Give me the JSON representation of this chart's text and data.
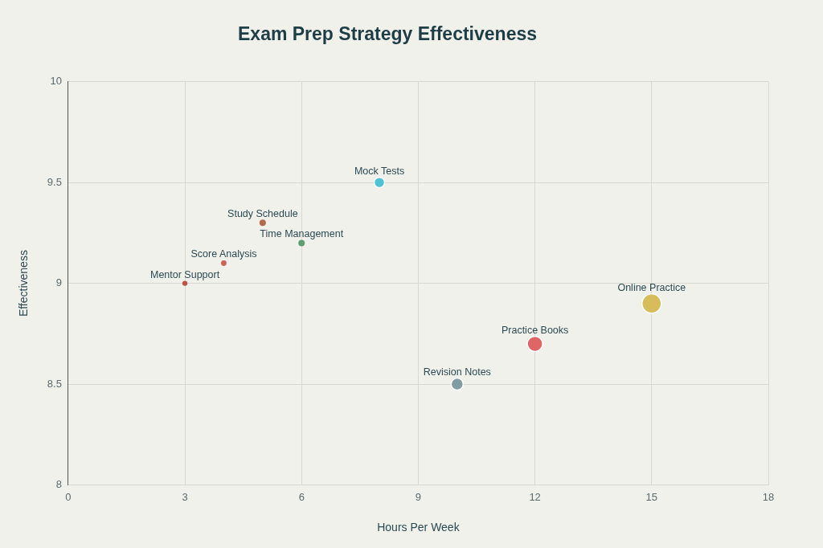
{
  "chart_data": {
    "type": "bubble",
    "title": "Exam Prep Strategy Effectiveness",
    "xlabel": "Hours Per Week",
    "ylabel": "Effectiveness",
    "xlim": [
      0,
      18
    ],
    "xticks": [
      0,
      3,
      6,
      9,
      12,
      15,
      18
    ],
    "ylim": [
      8,
      10
    ],
    "yticks": [
      8,
      8.5,
      9,
      9.5,
      10
    ],
    "grid": true,
    "legend": false,
    "series": [
      {
        "name": "Mentor Support",
        "color": "#c0504d",
        "x": [
          3
        ],
        "values": [
          9.0
        ],
        "sizes": [
          0.07
        ]
      },
      {
        "name": "Score Analysis",
        "color": "#d0605a",
        "x": [
          4
        ],
        "values": [
          9.1
        ],
        "sizes": [
          0.08
        ]
      },
      {
        "name": "Study Schedule",
        "color": "#b4694e",
        "x": [
          5
        ],
        "values": [
          9.3
        ],
        "sizes": [
          0.11
        ]
      },
      {
        "name": "Time Management",
        "color": "#5d9e72",
        "x": [
          6
        ],
        "values": [
          9.2
        ],
        "sizes": [
          0.11
        ]
      },
      {
        "name": "Mock Tests",
        "color": "#4ec3d6",
        "x": [
          8
        ],
        "values": [
          9.5
        ],
        "sizes": [
          0.29
        ]
      },
      {
        "name": "Revision Notes",
        "color": "#819ca3",
        "x": [
          10
        ],
        "values": [
          8.5
        ],
        "sizes": [
          0.39
        ]
      },
      {
        "name": "Practice Books",
        "color": "#e06666",
        "x": [
          12
        ],
        "values": [
          8.7
        ],
        "sizes": [
          0.63
        ]
      },
      {
        "name": "Online Practice",
        "color": "#d6bd5a",
        "x": [
          15
        ],
        "values": [
          8.9
        ],
        "sizes": [
          1
        ]
      }
    ]
  }
}
